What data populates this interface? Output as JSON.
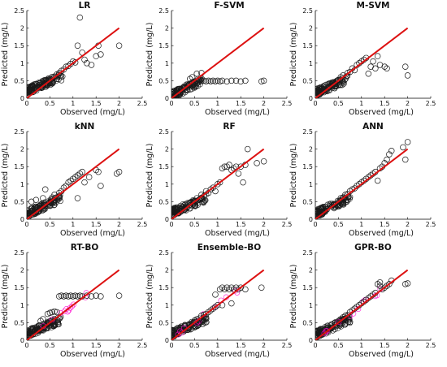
{
  "colors": {
    "points": "#1a1a1a",
    "fit_line": "#dd1111",
    "highlight": "#ff00cc",
    "axis": "#000000"
  },
  "chart_data": [
    {
      "type": "scatter",
      "title": "LR",
      "xlabel": "Observed (mg/L)",
      "ylabel": "Predicted (mg/L)",
      "xlim": [
        0,
        2.5
      ],
      "ylim": [
        0,
        2.5
      ],
      "xticks": [
        "0",
        "0.5",
        "1",
        "1.5",
        "2",
        "2.5"
      ],
      "yticks": [
        "0",
        "0.5",
        "1",
        "1.5",
        "2",
        "2.5"
      ],
      "fit_line": [
        [
          0,
          0
        ],
        [
          2,
          2
        ]
      ],
      "cluster_range": [
        0.21,
        0.62
      ],
      "points": [
        [
          0.08,
          0.18
        ],
        [
          0.12,
          0.22
        ],
        [
          0.18,
          0.25
        ],
        [
          0.25,
          0.3
        ],
        [
          0.3,
          0.32
        ],
        [
          0.35,
          0.38
        ],
        [
          0.4,
          0.42
        ],
        [
          0.45,
          0.5
        ],
        [
          0.5,
          0.55
        ],
        [
          0.55,
          0.6
        ],
        [
          0.6,
          0.62
        ],
        [
          0.65,
          0.68
        ],
        [
          0.7,
          0.72
        ],
        [
          0.75,
          0.78
        ],
        [
          0.8,
          0.82
        ],
        [
          0.85,
          0.9
        ],
        [
          0.9,
          0.92
        ],
        [
          0.95,
          0.98
        ],
        [
          1.0,
          1.05
        ],
        [
          1.05,
          1.02
        ],
        [
          1.1,
          1.5
        ],
        [
          1.15,
          2.3
        ],
        [
          1.2,
          1.3
        ],
        [
          1.25,
          1.1
        ],
        [
          1.3,
          1.0
        ],
        [
          1.4,
          0.95
        ],
        [
          1.5,
          1.2
        ],
        [
          1.55,
          1.5
        ],
        [
          1.6,
          1.25
        ],
        [
          2.0,
          1.5
        ],
        [
          0.55,
          0.42
        ],
        [
          0.65,
          0.55
        ],
        [
          0.72,
          0.65
        ]
      ]
    },
    {
      "type": "scatter",
      "title": "F-SVM",
      "xlabel": "Observed (mg/L)",
      "ylabel": "Predicted (mg/L)",
      "xlim": [
        0,
        2.5
      ],
      "ylim": [
        0,
        2.5
      ],
      "xticks": [
        "0",
        "0.5",
        "1",
        "1.5",
        "2",
        "2.5"
      ],
      "yticks": [
        "0",
        "0.5",
        "1",
        "1.5",
        "2",
        "2.5"
      ],
      "fit_line": [
        [
          0,
          0
        ],
        [
          2,
          2
        ]
      ],
      "cluster_range": [
        0.08,
        0.5
      ],
      "points": [
        [
          0.5,
          0.48
        ],
        [
          0.6,
          0.5
        ],
        [
          0.7,
          0.5
        ],
        [
          0.75,
          0.48
        ],
        [
          0.8,
          0.5
        ],
        [
          0.85,
          0.48
        ],
        [
          0.9,
          0.5
        ],
        [
          0.95,
          0.48
        ],
        [
          1.0,
          0.5
        ],
        [
          1.05,
          0.48
        ],
        [
          1.1,
          0.5
        ],
        [
          1.2,
          0.48
        ],
        [
          1.3,
          0.5
        ],
        [
          1.4,
          0.5
        ],
        [
          1.5,
          0.48
        ],
        [
          1.6,
          0.5
        ],
        [
          1.95,
          0.48
        ],
        [
          2.0,
          0.5
        ],
        [
          0.55,
          0.7
        ],
        [
          0.65,
          0.72
        ],
        [
          0.4,
          0.55
        ],
        [
          0.45,
          0.6
        ]
      ]
    },
    {
      "type": "scatter",
      "title": "M-SVM",
      "xlabel": "Observed (mg/L)",
      "ylabel": "Predicted (mg/L)",
      "xlim": [
        0,
        2.5
      ],
      "ylim": [
        0,
        2.5
      ],
      "xticks": [
        "0",
        "0.5",
        "1",
        "1.5",
        "2",
        "2.5"
      ],
      "yticks": [
        "0",
        "0.5",
        "1",
        "1.5",
        "2",
        "2.5"
      ],
      "fit_line": [
        [
          0,
          0
        ],
        [
          2,
          2
        ]
      ],
      "cluster_range": [
        0.15,
        0.55
      ],
      "points": [
        [
          0.55,
          0.6
        ],
        [
          0.6,
          0.65
        ],
        [
          0.7,
          0.72
        ],
        [
          0.75,
          0.75
        ],
        [
          0.8,
          0.85
        ],
        [
          0.85,
          0.8
        ],
        [
          0.9,
          0.95
        ],
        [
          0.95,
          1.0
        ],
        [
          1.0,
          1.05
        ],
        [
          1.05,
          1.1
        ],
        [
          1.1,
          1.15
        ],
        [
          1.2,
          0.9
        ],
        [
          1.25,
          1.05
        ],
        [
          1.3,
          0.85
        ],
        [
          1.4,
          0.95
        ],
        [
          1.5,
          0.9
        ],
        [
          1.55,
          0.85
        ],
        [
          1.95,
          0.9
        ],
        [
          2.0,
          0.65
        ],
        [
          1.15,
          0.7
        ],
        [
          1.35,
          1.2
        ]
      ]
    },
    {
      "type": "scatter",
      "title": "kNN",
      "xlabel": "Observed (mg/L)",
      "ylabel": "Predicted (mg/L)",
      "xlim": [
        0,
        2.5
      ],
      "ylim": [
        0,
        2.5
      ],
      "xticks": [
        "0",
        "0.5",
        "1",
        "1.5",
        "2",
        "2.5"
      ],
      "yticks": [
        "0",
        "0.5",
        "1",
        "1.5",
        "2",
        "2.5"
      ],
      "fit_line": [
        [
          0,
          0
        ],
        [
          2,
          2
        ]
      ],
      "cluster_range": [
        0.15,
        0.6
      ],
      "points": [
        [
          0.1,
          0.5
        ],
        [
          0.2,
          0.55
        ],
        [
          0.35,
          0.6
        ],
        [
          0.55,
          0.62
        ],
        [
          0.6,
          0.7
        ],
        [
          0.7,
          0.75
        ],
        [
          0.75,
          0.8
        ],
        [
          0.8,
          0.9
        ],
        [
          0.85,
          0.95
        ],
        [
          0.9,
          1.05
        ],
        [
          0.95,
          1.1
        ],
        [
          1.0,
          1.15
        ],
        [
          1.05,
          1.2
        ],
        [
          1.1,
          1.25
        ],
        [
          1.15,
          1.3
        ],
        [
          1.2,
          1.35
        ],
        [
          1.25,
          1.05
        ],
        [
          1.35,
          1.2
        ],
        [
          1.5,
          1.4
        ],
        [
          1.55,
          1.35
        ],
        [
          1.95,
          1.3
        ],
        [
          2.0,
          1.35
        ],
        [
          1.6,
          0.95
        ],
        [
          1.1,
          0.6
        ],
        [
          0.4,
          0.85
        ]
      ]
    },
    {
      "type": "scatter",
      "title": "RF",
      "xlabel": "Observed (mg/L)",
      "ylabel": "Predicted (mg/L)",
      "xlim": [
        0,
        2.5
      ],
      "ylim": [
        0,
        2.5
      ],
      "xticks": [
        "0",
        "0.5",
        "1",
        "1.5",
        "2",
        "2.5"
      ],
      "yticks": [
        "0",
        "0.5",
        "1",
        "1.5",
        "2",
        "2.5"
      ],
      "fit_line": [
        [
          0,
          0
        ],
        [
          2,
          2
        ]
      ],
      "cluster_range": [
        0.18,
        0.6
      ],
      "points": [
        [
          0.55,
          0.6
        ],
        [
          0.6,
          0.55
        ],
        [
          0.65,
          0.7
        ],
        [
          0.7,
          0.65
        ],
        [
          0.75,
          0.8
        ],
        [
          0.8,
          0.75
        ],
        [
          0.85,
          0.85
        ],
        [
          0.9,
          0.9
        ],
        [
          0.95,
          0.8
        ],
        [
          1.0,
          1.0
        ],
        [
          1.05,
          1.05
        ],
        [
          1.1,
          1.45
        ],
        [
          1.15,
          1.5
        ],
        [
          1.2,
          1.5
        ],
        [
          1.25,
          1.55
        ],
        [
          1.3,
          1.4
        ],
        [
          1.35,
          1.45
        ],
        [
          1.4,
          1.5
        ],
        [
          1.45,
          1.3
        ],
        [
          1.5,
          1.5
        ],
        [
          1.55,
          1.05
        ],
        [
          1.6,
          1.55
        ],
        [
          1.65,
          2.0
        ],
        [
          1.85,
          1.6
        ],
        [
          2.0,
          1.65
        ]
      ]
    },
    {
      "type": "scatter",
      "title": "ANN",
      "xlabel": "Observed (mg/L)",
      "ylabel": "Predicted (mg/L)",
      "xlim": [
        0,
        2.5
      ],
      "ylim": [
        0,
        2.5
      ],
      "xticks": [
        "0",
        "0.5",
        "1",
        "1.5",
        "2",
        "2.5"
      ],
      "yticks": [
        "0",
        "0.5",
        "1",
        "1.5",
        "2",
        "2.5"
      ],
      "fit_line": [
        [
          0,
          0
        ],
        [
          2,
          2
        ]
      ],
      "cluster_range": [
        0.15,
        0.6
      ],
      "points": [
        [
          0.55,
          0.6
        ],
        [
          0.6,
          0.62
        ],
        [
          0.65,
          0.7
        ],
        [
          0.7,
          0.72
        ],
        [
          0.75,
          0.8
        ],
        [
          0.8,
          0.85
        ],
        [
          0.85,
          0.88
        ],
        [
          0.9,
          0.95
        ],
        [
          0.95,
          1.0
        ],
        [
          1.0,
          1.05
        ],
        [
          1.05,
          1.1
        ],
        [
          1.1,
          1.15
        ],
        [
          1.15,
          1.2
        ],
        [
          1.2,
          1.25
        ],
        [
          1.25,
          1.3
        ],
        [
          1.3,
          1.35
        ],
        [
          1.4,
          1.45
        ],
        [
          1.45,
          1.5
        ],
        [
          1.5,
          1.6
        ],
        [
          1.55,
          1.7
        ],
        [
          1.6,
          1.85
        ],
        [
          1.65,
          1.95
        ],
        [
          1.9,
          2.05
        ],
        [
          1.95,
          1.7
        ],
        [
          2.0,
          2.2
        ],
        [
          1.35,
          1.1
        ]
      ]
    },
    {
      "type": "scatter",
      "title": "RT-BO",
      "xlabel": "Observed (mg/L)",
      "ylabel": "Predicted (mg/L)",
      "xlim": [
        0,
        2.5
      ],
      "ylim": [
        0,
        2.5
      ],
      "xticks": [
        "0",
        "0.5",
        "1",
        "1.5",
        "2",
        "2.5"
      ],
      "yticks": [
        "0",
        "0.5",
        "1",
        "1.5",
        "2",
        "2.5"
      ],
      "fit_line": [
        [
          0,
          0
        ],
        [
          2,
          2
        ]
      ],
      "cluster_range": [
        0.18,
        0.58
      ],
      "points": [
        [
          0.3,
          0.55
        ],
        [
          0.35,
          0.6
        ],
        [
          0.45,
          0.75
        ],
        [
          0.5,
          0.78
        ],
        [
          0.55,
          0.8
        ],
        [
          0.6,
          0.82
        ],
        [
          0.65,
          0.8
        ],
        [
          0.7,
          1.25
        ],
        [
          0.75,
          1.27
        ],
        [
          0.8,
          1.25
        ],
        [
          0.85,
          1.27
        ],
        [
          0.9,
          1.25
        ],
        [
          0.95,
          1.27
        ],
        [
          1.0,
          1.25
        ],
        [
          1.05,
          1.27
        ],
        [
          1.1,
          1.25
        ],
        [
          1.15,
          1.27
        ],
        [
          1.2,
          1.25
        ],
        [
          1.3,
          1.27
        ],
        [
          1.4,
          1.25
        ],
        [
          1.5,
          1.27
        ],
        [
          1.6,
          1.25
        ],
        [
          2.0,
          1.27
        ],
        [
          0.6,
          0.55
        ],
        [
          0.7,
          0.62
        ]
      ]
    },
    {
      "type": "scatter",
      "title": "Ensemble-BO",
      "xlabel": "Observed (mg/L)",
      "ylabel": "Predicted (mg/L)",
      "xlim": [
        0,
        2.5
      ],
      "ylim": [
        0,
        2.5
      ],
      "xticks": [
        "0",
        "0.5",
        "1",
        "1.5",
        "2",
        "2.5"
      ],
      "yticks": [
        "0",
        "0.5",
        "1",
        "1.5",
        "2",
        "2.5"
      ],
      "fit_line": [
        [
          0,
          0
        ],
        [
          2,
          2
        ]
      ],
      "cluster_range": [
        0.18,
        0.6
      ],
      "points": [
        [
          0.55,
          0.6
        ],
        [
          0.6,
          0.62
        ],
        [
          0.65,
          0.7
        ],
        [
          0.7,
          0.72
        ],
        [
          0.75,
          0.75
        ],
        [
          0.8,
          0.8
        ],
        [
          0.85,
          0.85
        ],
        [
          0.9,
          0.9
        ],
        [
          0.95,
          0.95
        ],
        [
          1.0,
          1.0
        ],
        [
          1.05,
          1.45
        ],
        [
          1.1,
          1.5
        ],
        [
          1.15,
          1.45
        ],
        [
          1.2,
          1.5
        ],
        [
          1.25,
          1.45
        ],
        [
          1.3,
          1.5
        ],
        [
          1.35,
          1.45
        ],
        [
          1.4,
          1.5
        ],
        [
          1.45,
          1.45
        ],
        [
          1.5,
          1.5
        ],
        [
          1.6,
          1.45
        ],
        [
          1.95,
          1.5
        ],
        [
          0.95,
          1.3
        ],
        [
          1.1,
          1.0
        ],
        [
          1.3,
          1.05
        ]
      ]
    },
    {
      "type": "scatter",
      "title": "GPR-BO",
      "xlabel": "Observed (mg/L)",
      "ylabel": "Predicted (mg/L)",
      "xlim": [
        0,
        2.5
      ],
      "ylim": [
        0,
        2.5
      ],
      "xticks": [
        "0",
        "0.5",
        "1",
        "1.5",
        "2",
        "2.5"
      ],
      "yticks": [
        "0",
        "0.5",
        "1",
        "1.5",
        "2",
        "2.5"
      ],
      "fit_line": [
        [
          0,
          0
        ],
        [
          2,
          2
        ]
      ],
      "cluster_range": [
        0.15,
        0.6
      ],
      "points": [
        [
          0.55,
          0.6
        ],
        [
          0.6,
          0.65
        ],
        [
          0.65,
          0.7
        ],
        [
          0.7,
          0.72
        ],
        [
          0.75,
          0.8
        ],
        [
          0.8,
          0.85
        ],
        [
          0.85,
          0.9
        ],
        [
          0.9,
          0.95
        ],
        [
          0.95,
          1.0
        ],
        [
          1.0,
          1.05
        ],
        [
          1.05,
          1.1
        ],
        [
          1.1,
          1.15
        ],
        [
          1.15,
          1.2
        ],
        [
          1.2,
          1.25
        ],
        [
          1.25,
          1.3
        ],
        [
          1.3,
          1.35
        ],
        [
          1.35,
          1.6
        ],
        [
          1.4,
          1.55
        ],
        [
          1.45,
          1.45
        ],
        [
          1.5,
          1.5
        ],
        [
          1.55,
          1.55
        ],
        [
          1.6,
          1.6
        ],
        [
          1.65,
          1.7
        ],
        [
          1.95,
          1.6
        ],
        [
          2.0,
          1.62
        ],
        [
          1.4,
          1.65
        ]
      ]
    }
  ]
}
